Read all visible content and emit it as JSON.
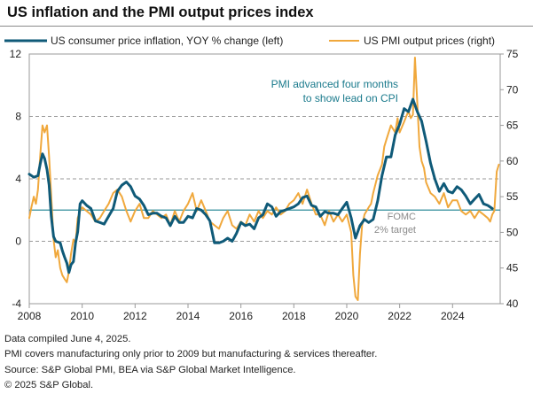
{
  "title": "US inflation and the PMI output prices index",
  "footer": {
    "line1": "Data compiled June 4, 2025.",
    "line2": "PMI covers manufacturing only prior to 2009 but manufacturing & services thereafter.",
    "line3": "Source: S&P Global PMI, BEA via S&P Global Market Intelligence.",
    "line4": "© 2025 S&P Global."
  },
  "chart_data": {
    "type": "line",
    "xlim": [
      2008,
      2025.8
    ],
    "x_ticks": [
      2008,
      2010,
      2012,
      2014,
      2016,
      2018,
      2020,
      2022,
      2024
    ],
    "x_tick_labels": [
      "2008",
      "2010",
      "2012",
      "2014",
      "2016",
      "2018",
      "2020",
      "2022",
      "2024"
    ],
    "y_left": {
      "lim": [
        -4,
        12
      ],
      "ticks": [
        -4,
        0,
        4,
        8,
        12
      ],
      "tick_labels": [
        "-4",
        "0",
        "4",
        "8",
        "12"
      ]
    },
    "y_right": {
      "lim": [
        40,
        75
      ],
      "ticks": [
        40,
        45,
        50,
        55,
        60,
        65,
        70,
        75
      ],
      "tick_labels": [
        "40",
        "45",
        "50",
        "55",
        "60",
        "65",
        "70",
        "75"
      ]
    },
    "gridlines_left": [
      0,
      4,
      8
    ],
    "reference_line": {
      "value": 2,
      "axis": "left",
      "color": "#2e8b9a",
      "label_line1": "FOMC",
      "label_line2": "2% target"
    },
    "annotation": {
      "line1": "PMI advanced four months",
      "line2": "to show lead on CPI",
      "color": "#1a7a8c"
    },
    "legend_position": "top",
    "series": [
      {
        "name": "US consumer price inflation, YOY % change (left)",
        "axis": "left",
        "color": "#0f5a78",
        "points": [
          [
            2008.0,
            4.3
          ],
          [
            2008.17,
            4.1
          ],
          [
            2008.33,
            4.2
          ],
          [
            2008.42,
            5.0
          ],
          [
            2008.5,
            5.6
          ],
          [
            2008.58,
            5.3
          ],
          [
            2008.67,
            4.6
          ],
          [
            2008.75,
            3.6
          ],
          [
            2008.83,
            1.6
          ],
          [
            2008.92,
            0.3
          ],
          [
            2009.0,
            0.0
          ],
          [
            2009.17,
            -0.1
          ],
          [
            2009.25,
            -0.6
          ],
          [
            2009.33,
            -1.0
          ],
          [
            2009.42,
            -1.4
          ],
          [
            2009.5,
            -2.0
          ],
          [
            2009.58,
            -1.5
          ],
          [
            2009.67,
            -1.3
          ],
          [
            2009.75,
            -0.1
          ],
          [
            2009.83,
            0.6
          ],
          [
            2009.92,
            2.4
          ],
          [
            2010.0,
            2.6
          ],
          [
            2010.17,
            2.3
          ],
          [
            2010.33,
            2.1
          ],
          [
            2010.5,
            1.3
          ],
          [
            2010.67,
            1.2
          ],
          [
            2010.83,
            1.1
          ],
          [
            2011.0,
            1.6
          ],
          [
            2011.17,
            2.1
          ],
          [
            2011.33,
            3.2
          ],
          [
            2011.5,
            3.6
          ],
          [
            2011.67,
            3.8
          ],
          [
            2011.83,
            3.5
          ],
          [
            2012.0,
            2.9
          ],
          [
            2012.17,
            2.7
          ],
          [
            2012.33,
            2.3
          ],
          [
            2012.5,
            1.7
          ],
          [
            2012.67,
            1.8
          ],
          [
            2012.83,
            1.8
          ],
          [
            2013.0,
            1.6
          ],
          [
            2013.17,
            1.5
          ],
          [
            2013.33,
            1.0
          ],
          [
            2013.5,
            1.6
          ],
          [
            2013.67,
            1.2
          ],
          [
            2013.83,
            1.2
          ],
          [
            2014.0,
            1.6
          ],
          [
            2014.17,
            1.5
          ],
          [
            2014.33,
            2.1
          ],
          [
            2014.5,
            2.0
          ],
          [
            2014.67,
            1.7
          ],
          [
            2014.83,
            1.3
          ],
          [
            2015.0,
            -0.1
          ],
          [
            2015.17,
            -0.1
          ],
          [
            2015.33,
            0.0
          ],
          [
            2015.5,
            0.2
          ],
          [
            2015.67,
            0.0
          ],
          [
            2015.83,
            0.5
          ],
          [
            2016.0,
            1.2
          ],
          [
            2016.17,
            1.0
          ],
          [
            2016.33,
            1.1
          ],
          [
            2016.5,
            0.8
          ],
          [
            2016.67,
            1.5
          ],
          [
            2016.83,
            1.7
          ],
          [
            2017.0,
            2.4
          ],
          [
            2017.17,
            2.2
          ],
          [
            2017.33,
            1.6
          ],
          [
            2017.5,
            1.9
          ],
          [
            2017.67,
            2.0
          ],
          [
            2017.83,
            2.1
          ],
          [
            2018.0,
            2.2
          ],
          [
            2018.17,
            2.4
          ],
          [
            2018.33,
            2.8
          ],
          [
            2018.5,
            2.9
          ],
          [
            2018.67,
            2.3
          ],
          [
            2018.83,
            2.2
          ],
          [
            2019.0,
            1.6
          ],
          [
            2019.17,
            1.9
          ],
          [
            2019.33,
            1.8
          ],
          [
            2019.5,
            1.8
          ],
          [
            2019.67,
            1.7
          ],
          [
            2019.83,
            2.1
          ],
          [
            2020.0,
            2.5
          ],
          [
            2020.17,
            1.5
          ],
          [
            2020.33,
            0.2
          ],
          [
            2020.5,
            1.0
          ],
          [
            2020.67,
            1.4
          ],
          [
            2020.83,
            1.2
          ],
          [
            2021.0,
            1.4
          ],
          [
            2021.17,
            2.6
          ],
          [
            2021.33,
            4.2
          ],
          [
            2021.5,
            5.4
          ],
          [
            2021.67,
            5.4
          ],
          [
            2021.83,
            6.8
          ],
          [
            2022.0,
            7.5
          ],
          [
            2022.17,
            8.5
          ],
          [
            2022.33,
            8.3
          ],
          [
            2022.5,
            9.1
          ],
          [
            2022.67,
            8.3
          ],
          [
            2022.83,
            7.7
          ],
          [
            2023.0,
            6.4
          ],
          [
            2023.17,
            5.0
          ],
          [
            2023.33,
            4.0
          ],
          [
            2023.5,
            3.2
          ],
          [
            2023.67,
            3.7
          ],
          [
            2023.83,
            3.2
          ],
          [
            2024.0,
            3.1
          ],
          [
            2024.17,
            3.5
          ],
          [
            2024.33,
            3.3
          ],
          [
            2024.5,
            2.9
          ],
          [
            2024.67,
            2.4
          ],
          [
            2024.83,
            2.7
          ],
          [
            2025.0,
            3.0
          ],
          [
            2025.17,
            2.4
          ],
          [
            2025.33,
            2.3
          ],
          [
            2025.5,
            2.1
          ]
        ]
      },
      {
        "name": "US PMI output prices (right)",
        "axis": "right",
        "color": "#f0a83c",
        "points": [
          [
            2008.0,
            52.0
          ],
          [
            2008.08,
            53.5
          ],
          [
            2008.17,
            55.0
          ],
          [
            2008.25,
            54.0
          ],
          [
            2008.33,
            56.0
          ],
          [
            2008.42,
            61.0
          ],
          [
            2008.5,
            65.0
          ],
          [
            2008.58,
            64.0
          ],
          [
            2008.67,
            65.0
          ],
          [
            2008.75,
            60.5
          ],
          [
            2008.83,
            55.0
          ],
          [
            2008.92,
            49.0
          ],
          [
            2009.0,
            46.5
          ],
          [
            2009.08,
            47.5
          ],
          [
            2009.17,
            45.0
          ],
          [
            2009.25,
            44.0
          ],
          [
            2009.33,
            43.5
          ],
          [
            2009.42,
            43.0
          ],
          [
            2009.5,
            44.5
          ],
          [
            2009.58,
            47.0
          ],
          [
            2009.67,
            49.0
          ],
          [
            2009.75,
            48.5
          ],
          [
            2009.83,
            52.0
          ],
          [
            2009.92,
            53.0
          ],
          [
            2010.0,
            53.5
          ],
          [
            2010.17,
            53.0
          ],
          [
            2010.33,
            52.5
          ],
          [
            2010.5,
            51.5
          ],
          [
            2010.67,
            52.0
          ],
          [
            2010.83,
            53.0
          ],
          [
            2011.0,
            54.0
          ],
          [
            2011.17,
            55.5
          ],
          [
            2011.33,
            56.0
          ],
          [
            2011.5,
            55.0
          ],
          [
            2011.67,
            53.0
          ],
          [
            2011.83,
            51.5
          ],
          [
            2012.0,
            53.0
          ],
          [
            2012.17,
            54.0
          ],
          [
            2012.33,
            52.0
          ],
          [
            2012.5,
            52.0
          ],
          [
            2012.67,
            53.0
          ],
          [
            2012.83,
            52.5
          ],
          [
            2013.0,
            52.0
          ],
          [
            2013.17,
            52.5
          ],
          [
            2013.33,
            51.0
          ],
          [
            2013.5,
            53.0
          ],
          [
            2013.67,
            51.5
          ],
          [
            2013.83,
            53.0
          ],
          [
            2014.0,
            54.0
          ],
          [
            2014.17,
            55.5
          ],
          [
            2014.33,
            53.0
          ],
          [
            2014.5,
            54.5
          ],
          [
            2014.67,
            53.0
          ],
          [
            2014.83,
            51.5
          ],
          [
            2015.0,
            51.0
          ],
          [
            2015.17,
            50.5
          ],
          [
            2015.33,
            52.0
          ],
          [
            2015.5,
            53.0
          ],
          [
            2015.67,
            51.0
          ],
          [
            2015.83,
            50.5
          ],
          [
            2016.0,
            51.5
          ],
          [
            2016.17,
            51.0
          ],
          [
            2016.33,
            52.5
          ],
          [
            2016.5,
            51.5
          ],
          [
            2016.67,
            53.0
          ],
          [
            2016.83,
            52.0
          ],
          [
            2017.0,
            53.0
          ],
          [
            2017.17,
            52.5
          ],
          [
            2017.33,
            53.5
          ],
          [
            2017.5,
            52.5
          ],
          [
            2017.67,
            53.0
          ],
          [
            2017.83,
            54.0
          ],
          [
            2018.0,
            54.5
          ],
          [
            2018.17,
            55.5
          ],
          [
            2018.33,
            54.0
          ],
          [
            2018.5,
            56.0
          ],
          [
            2018.67,
            54.0
          ],
          [
            2018.83,
            52.5
          ],
          [
            2019.0,
            52.5
          ],
          [
            2019.17,
            51.0
          ],
          [
            2019.33,
            53.0
          ],
          [
            2019.5,
            51.5
          ],
          [
            2019.67,
            52.5
          ],
          [
            2019.83,
            51.5
          ],
          [
            2020.0,
            52.5
          ],
          [
            2020.17,
            50.0
          ],
          [
            2020.25,
            44.0
          ],
          [
            2020.33,
            41.0
          ],
          [
            2020.42,
            40.5
          ],
          [
            2020.5,
            47.0
          ],
          [
            2020.58,
            51.0
          ],
          [
            2020.67,
            52.5
          ],
          [
            2020.83,
            53.5
          ],
          [
            2020.92,
            54.0
          ],
          [
            2021.0,
            55.5
          ],
          [
            2021.17,
            58.0
          ],
          [
            2021.33,
            59.5
          ],
          [
            2021.42,
            62.0
          ],
          [
            2021.5,
            63.0
          ],
          [
            2021.67,
            65.0
          ],
          [
            2021.83,
            64.0
          ],
          [
            2021.92,
            66.0
          ],
          [
            2022.0,
            64.0
          ],
          [
            2022.17,
            65.5
          ],
          [
            2022.33,
            67.0
          ],
          [
            2022.42,
            66.0
          ],
          [
            2022.5,
            66.5
          ],
          [
            2022.58,
            74.5
          ],
          [
            2022.67,
            68.0
          ],
          [
            2022.75,
            62.0
          ],
          [
            2022.83,
            60.0
          ],
          [
            2022.92,
            59.0
          ],
          [
            2023.0,
            57.0
          ],
          [
            2023.17,
            55.5
          ],
          [
            2023.33,
            55.0
          ],
          [
            2023.5,
            54.0
          ],
          [
            2023.67,
            55.5
          ],
          [
            2023.83,
            53.5
          ],
          [
            2024.0,
            54.5
          ],
          [
            2024.17,
            54.5
          ],
          [
            2024.33,
            53.0
          ],
          [
            2024.5,
            52.5
          ],
          [
            2024.67,
            53.0
          ],
          [
            2024.83,
            52.0
          ],
          [
            2025.0,
            53.0
          ],
          [
            2025.17,
            52.5
          ],
          [
            2025.33,
            52.0
          ],
          [
            2025.42,
            51.5
          ],
          [
            2025.5,
            52.5
          ],
          [
            2025.58,
            53.0
          ],
          [
            2025.67,
            58.5
          ],
          [
            2025.75,
            59.5
          ]
        ]
      }
    ]
  }
}
